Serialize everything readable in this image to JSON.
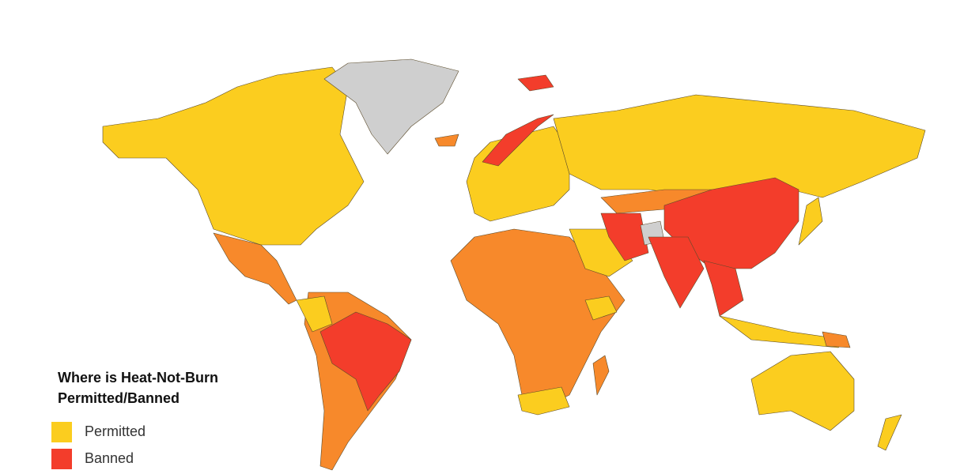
{
  "legend": {
    "title": [
      "Where is Heat-Not-Burn",
      "Permitted/Banned"
    ],
    "items": [
      {
        "label": "Permitted",
        "color": "#fbcd1f"
      },
      {
        "label": "Banned",
        "color": "#f33d2b"
      }
    ]
  }
}
